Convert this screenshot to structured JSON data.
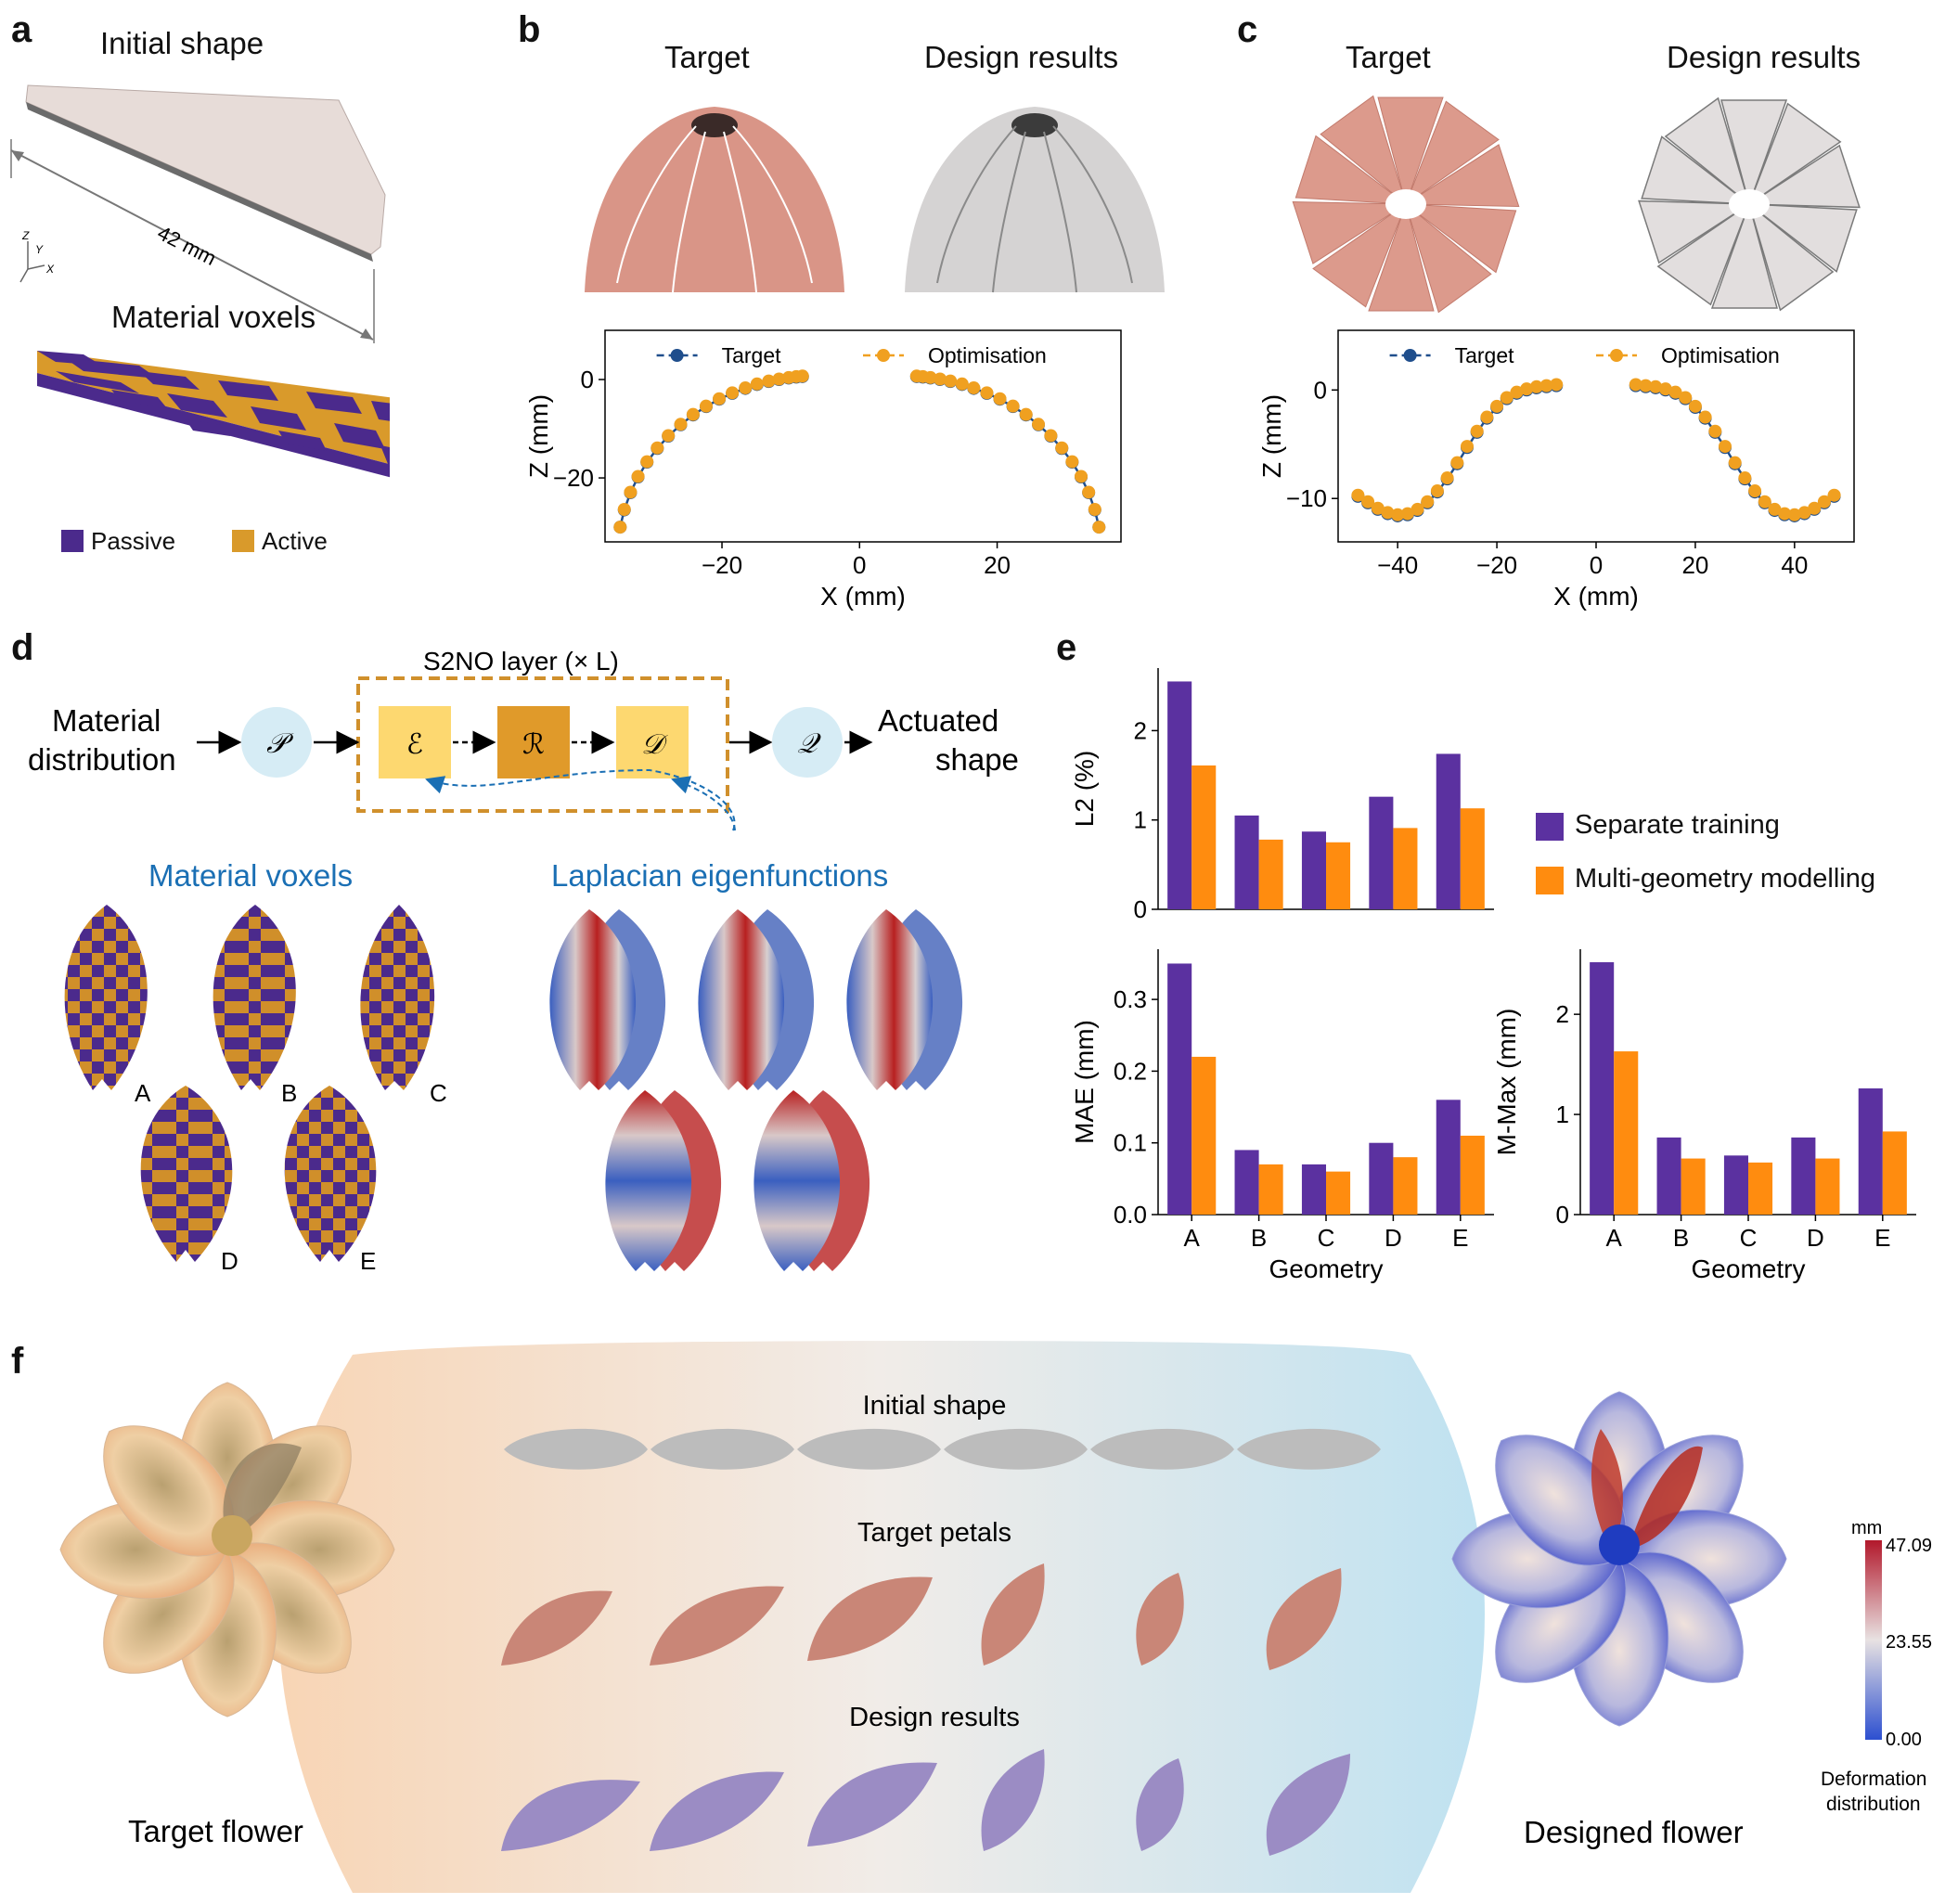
{
  "panels": {
    "a": {
      "label": "a",
      "initial_shape": "Initial shape",
      "dimension": "42 mm",
      "material_voxels": "Material voxels",
      "axis_z": "Z",
      "axis_y": "Y",
      "axis_x": "X",
      "legend_passive": "Passive",
      "legend_active": "Active"
    },
    "b": {
      "label": "b",
      "target": "Target",
      "design": "Design results"
    },
    "c": {
      "label": "c",
      "target": "Target",
      "design": "Design results"
    },
    "d": {
      "label": "d",
      "s2no": "S2NO layer (× L)",
      "material_distribution_1": "Material",
      "material_distribution_2": "distribution",
      "actuated_1": "Actuated",
      "actuated_2": "shape",
      "op_p": "𝒫",
      "op_e": "ℰ",
      "op_r": "ℛ",
      "op_d": "𝒟",
      "op_q": "𝒬",
      "material_voxels": "Material voxels",
      "laplacian": "Laplacian eigenfunctions",
      "leaf_labels": [
        "A",
        "B",
        "C",
        "D",
        "E"
      ]
    },
    "e": {
      "label": "e",
      "legend_separate": "Separate training",
      "legend_multi": "Multi-geometry modelling"
    },
    "f": {
      "label": "f",
      "initial_shape": "Initial shape",
      "target_petals": "Target petals",
      "design_results": "Design results",
      "target_flower": "Target flower",
      "designed_flower": "Designed flower",
      "colorbar_unit": "mm",
      "colorbar_max": "47.09",
      "colorbar_mid": "23.55",
      "colorbar_min": "0.00",
      "colorbar_caption_1": "Deformation",
      "colorbar_caption_2": "distribution"
    }
  },
  "colors": {
    "passive": "#4b2a8c",
    "active": "#d99a2b",
    "target_dome": "#d99587",
    "design_grey": "#d8d6d6",
    "target_line": "#1f4e8c",
    "optim_marker": "#f0a020",
    "separate": "#5b31a0",
    "multi": "#ff8c0f"
  },
  "chart_data": [
    {
      "id": "b",
      "type": "scatter",
      "title": "",
      "xlabel": "X (mm)",
      "ylabel": "Z (mm)",
      "xlim": [
        -37,
        38
      ],
      "ylim": [
        -33,
        10
      ],
      "xticks": [
        -20,
        0,
        20
      ],
      "yticks": [
        0,
        -20
      ],
      "legend": [
        "Target",
        "Optimisation"
      ],
      "series": [
        {
          "name": "Target",
          "x": [
            -34.8,
            -34.2,
            -33.3,
            -32.2,
            -30.9,
            -29.4,
            -27.8,
            -26.0,
            -24.2,
            -22.3,
            -20.4,
            -18.5,
            -16.6,
            -14.9,
            -13.2,
            -11.7,
            -10.3,
            -9.2,
            -8.3,
            8.3,
            9.2,
            10.3,
            11.7,
            13.2,
            14.9,
            16.6,
            18.5,
            20.4,
            22.3,
            24.2,
            26.0,
            27.8,
            29.4,
            30.9,
            32.2,
            33.3,
            34.2,
            34.8
          ],
          "y": [
            -30,
            -26.5,
            -23,
            -19.8,
            -16.8,
            -14.0,
            -11.5,
            -9.2,
            -7.2,
            -5.5,
            -4.0,
            -2.8,
            -1.8,
            -1.0,
            -0.4,
            0.0,
            0.3,
            0.5,
            0.6,
            0.6,
            0.5,
            0.3,
            0.0,
            -0.4,
            -1.0,
            -1.8,
            -2.8,
            -4.0,
            -5.5,
            -7.2,
            -9.2,
            -11.5,
            -14.0,
            -16.8,
            -19.8,
            -23,
            -26.5,
            -30
          ]
        },
        {
          "name": "Optimisation",
          "x": [
            -34.8,
            -34.2,
            -33.3,
            -32.2,
            -30.9,
            -29.4,
            -27.8,
            -26.0,
            -24.2,
            -22.3,
            -20.4,
            -18.5,
            -16.6,
            -14.9,
            -13.2,
            -11.7,
            -10.3,
            -9.2,
            -8.3,
            8.3,
            9.2,
            10.3,
            11.7,
            13.2,
            14.9,
            16.6,
            18.5,
            20.4,
            22.3,
            24.2,
            26.0,
            27.8,
            29.4,
            30.9,
            32.2,
            33.3,
            34.2,
            34.8
          ],
          "y": [
            -30,
            -26.4,
            -22.9,
            -19.7,
            -16.7,
            -13.9,
            -11.4,
            -9.1,
            -7.1,
            -5.4,
            -3.9,
            -2.7,
            -1.7,
            -0.9,
            -0.3,
            0.1,
            0.4,
            0.6,
            0.7,
            0.7,
            0.6,
            0.4,
            0.1,
            -0.3,
            -0.9,
            -1.7,
            -2.7,
            -3.9,
            -5.4,
            -7.1,
            -9.1,
            -11.4,
            -13.9,
            -16.7,
            -19.7,
            -22.9,
            -26.4,
            -30
          ]
        }
      ]
    },
    {
      "id": "c",
      "type": "scatter",
      "title": "",
      "xlabel": "X (mm)",
      "ylabel": "Z (mm)",
      "xlim": [
        -52,
        52
      ],
      "ylim": [
        -14,
        5.5
      ],
      "xticks": [
        -40,
        -20,
        0,
        20,
        40
      ],
      "yticks": [
        0,
        -10
      ],
      "legend": [
        "Target",
        "Optimisation"
      ],
      "series": [
        {
          "name": "Target",
          "x": [
            -48,
            -46,
            -44,
            -42,
            -40,
            -38,
            -36,
            -34,
            -32,
            -30,
            -28,
            -26,
            -24,
            -22,
            -20,
            -18,
            -16,
            -14,
            -12,
            -10,
            -8,
            8,
            10,
            12,
            14,
            16,
            18,
            20,
            22,
            24,
            26,
            28,
            30,
            32,
            34,
            36,
            38,
            40,
            42,
            44,
            46,
            48
          ],
          "y": [
            -9.8,
            -10.4,
            -11.0,
            -11.4,
            -11.6,
            -11.5,
            -11.1,
            -10.4,
            -9.4,
            -8.2,
            -6.8,
            -5.3,
            -3.9,
            -2.6,
            -1.6,
            -0.8,
            -0.3,
            0.0,
            0.2,
            0.3,
            0.4,
            0.4,
            0.3,
            0.2,
            0.0,
            -0.3,
            -0.8,
            -1.6,
            -2.6,
            -3.9,
            -5.3,
            -6.8,
            -8.2,
            -9.4,
            -10.4,
            -11.1,
            -11.5,
            -11.6,
            -11.4,
            -11.0,
            -10.4,
            -9.8
          ]
        },
        {
          "name": "Optimisation",
          "x": [
            -48,
            -46,
            -44,
            -42,
            -40,
            -38,
            -36,
            -34,
            -32,
            -30,
            -28,
            -26,
            -24,
            -22,
            -20,
            -18,
            -16,
            -14,
            -12,
            -10,
            -8,
            8,
            10,
            12,
            14,
            16,
            18,
            20,
            22,
            24,
            26,
            28,
            30,
            32,
            34,
            36,
            38,
            40,
            42,
            44,
            46,
            48
          ],
          "y": [
            -9.7,
            -10.3,
            -10.9,
            -11.3,
            -11.5,
            -11.4,
            -11.0,
            -10.3,
            -9.3,
            -8.1,
            -6.7,
            -5.2,
            -3.8,
            -2.5,
            -1.5,
            -0.7,
            -0.2,
            0.1,
            0.3,
            0.4,
            0.5,
            0.5,
            0.4,
            0.3,
            0.1,
            -0.2,
            -0.7,
            -1.5,
            -2.5,
            -3.8,
            -5.2,
            -6.7,
            -8.1,
            -9.3,
            -10.3,
            -11.0,
            -11.4,
            -11.5,
            -11.3,
            -10.9,
            -10.3,
            -9.7
          ]
        }
      ]
    },
    {
      "id": "e-l2",
      "type": "bar",
      "title": "",
      "xlabel": "",
      "ylabel": "L2 (%)",
      "categories": [
        "A",
        "B",
        "C",
        "D",
        "E"
      ],
      "ylim": [
        0,
        2.7
      ],
      "yticks": [
        0,
        1,
        2
      ],
      "series": [
        {
          "name": "Separate training",
          "values": [
            2.55,
            1.05,
            0.87,
            1.26,
            1.74
          ]
        },
        {
          "name": "Multi-geometry modelling",
          "values": [
            1.61,
            0.78,
            0.75,
            0.91,
            1.13
          ]
        }
      ]
    },
    {
      "id": "e-mae",
      "type": "bar",
      "title": "",
      "xlabel": "Geometry",
      "ylabel": "MAE (mm)",
      "categories": [
        "A",
        "B",
        "C",
        "D",
        "E"
      ],
      "ylim": [
        0,
        0.37
      ],
      "yticks": [
        0.0,
        0.1,
        0.2,
        0.3
      ],
      "series": [
        {
          "name": "Separate training",
          "values": [
            0.35,
            0.09,
            0.07,
            0.1,
            0.16
          ]
        },
        {
          "name": "Multi-geometry modelling",
          "values": [
            0.22,
            0.07,
            0.06,
            0.08,
            0.11
          ]
        }
      ]
    },
    {
      "id": "e-mmax",
      "type": "bar",
      "title": "",
      "xlabel": "Geometry",
      "ylabel": "M-Max (mm)",
      "categories": [
        "A",
        "B",
        "C",
        "D",
        "E"
      ],
      "ylim": [
        0,
        2.65
      ],
      "yticks": [
        0,
        1,
        2
      ],
      "series": [
        {
          "name": "Separate training",
          "values": [
            2.52,
            0.77,
            0.59,
            0.77,
            1.26
          ]
        },
        {
          "name": "Multi-geometry modelling",
          "values": [
            1.63,
            0.56,
            0.52,
            0.56,
            0.83
          ]
        }
      ]
    }
  ]
}
